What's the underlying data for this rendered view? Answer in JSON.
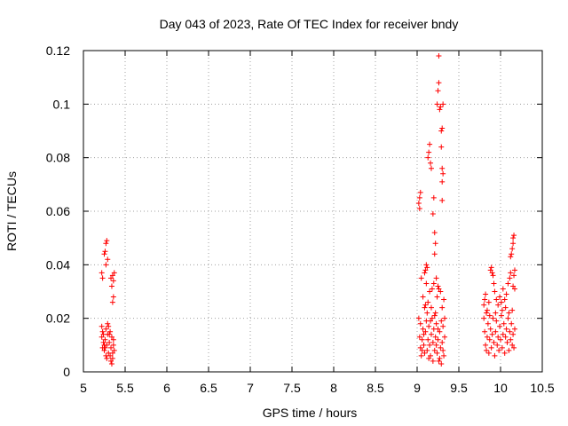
{
  "chart_data": {
    "type": "scatter",
    "title": "Day 043 of 2023, Rate Of TEC Index for receiver bndy",
    "xlabel": "GPS time / hours",
    "ylabel": "ROTI / TECUs",
    "xlim": [
      5,
      10.5
    ],
    "ylim": [
      0,
      0.12
    ],
    "grid": true,
    "marker": "+",
    "color": "#ff0000",
    "xticks": [
      {
        "value": 5,
        "label": "5"
      },
      {
        "value": 5.5,
        "label": "5.5"
      },
      {
        "value": 6,
        "label": "6"
      },
      {
        "value": 6.5,
        "label": "6.5"
      },
      {
        "value": 7,
        "label": "7"
      },
      {
        "value": 7.5,
        "label": "7.5"
      },
      {
        "value": 8,
        "label": "8"
      },
      {
        "value": 8.5,
        "label": "8.5"
      },
      {
        "value": 9,
        "label": "9"
      },
      {
        "value": 9.5,
        "label": "9.5"
      },
      {
        "value": 10,
        "label": "10"
      },
      {
        "value": 10.5,
        "label": "10.5"
      }
    ],
    "yticks": [
      {
        "value": 0,
        "label": "0"
      },
      {
        "value": 0.02,
        "label": "0.02"
      },
      {
        "value": 0.04,
        "label": "0.04"
      },
      {
        "value": 0.06,
        "label": "0.06"
      },
      {
        "value": 0.08,
        "label": "0.08"
      },
      {
        "value": 0.1,
        "label": "0.1"
      },
      {
        "value": 0.12,
        "label": "0.12"
      }
    ],
    "series": [
      {
        "name": "ROTI",
        "points": [
          [
            5.22,
            0.037
          ],
          [
            5.23,
            0.035
          ],
          [
            5.25,
            0.044
          ],
          [
            5.26,
            0.045
          ],
          [
            5.27,
            0.048
          ],
          [
            5.28,
            0.049
          ],
          [
            5.27,
            0.04
          ],
          [
            5.29,
            0.042
          ],
          [
            5.35,
            0.036
          ],
          [
            5.36,
            0.034
          ],
          [
            5.34,
            0.032
          ],
          [
            5.36,
            0.028
          ],
          [
            5.35,
            0.026
          ],
          [
            5.37,
            0.037
          ],
          [
            5.33,
            0.035
          ],
          [
            5.22,
            0.017
          ],
          [
            5.23,
            0.015
          ],
          [
            5.22,
            0.013
          ],
          [
            5.24,
            0.011
          ],
          [
            5.23,
            0.009
          ],
          [
            5.25,
            0.008
          ],
          [
            5.26,
            0.012
          ],
          [
            5.27,
            0.016
          ],
          [
            5.28,
            0.01
          ],
          [
            5.29,
            0.014
          ],
          [
            5.3,
            0.007
          ],
          [
            5.31,
            0.011
          ],
          [
            5.32,
            0.006
          ],
          [
            5.33,
            0.009
          ],
          [
            5.34,
            0.013
          ],
          [
            5.35,
            0.005
          ],
          [
            5.36,
            0.01
          ],
          [
            5.37,
            0.008
          ],
          [
            5.3,
            0.017
          ],
          [
            5.32,
            0.015
          ],
          [
            5.34,
            0.003
          ],
          [
            5.36,
            0.012
          ],
          [
            5.25,
            0.01
          ],
          [
            5.27,
            0.006
          ],
          [
            5.29,
            0.018
          ],
          [
            5.31,
            0.014
          ],
          [
            5.33,
            0.004
          ],
          [
            5.35,
            0.007
          ],
          [
            5.24,
            0.014
          ],
          [
            5.26,
            0.009
          ],
          [
            5.28,
            0.005
          ],
          [
            9.02,
            0.063
          ],
          [
            9.03,
            0.065
          ],
          [
            9.04,
            0.067
          ],
          [
            9.03,
            0.061
          ],
          [
            9.1,
            0.038
          ],
          [
            9.11,
            0.04
          ],
          [
            9.12,
            0.039
          ],
          [
            9.09,
            0.037
          ],
          [
            9.13,
            0.08
          ],
          [
            9.14,
            0.082
          ],
          [
            9.15,
            0.085
          ],
          [
            9.16,
            0.078
          ],
          [
            9.17,
            0.076
          ],
          [
            9.2,
            0.065
          ],
          [
            9.19,
            0.059
          ],
          [
            9.21,
            0.052
          ],
          [
            9.22,
            0.048
          ],
          [
            9.21,
            0.044
          ],
          [
            9.24,
            0.1
          ],
          [
            9.25,
            0.105
          ],
          [
            9.26,
            0.108
          ],
          [
            9.27,
            0.098
          ],
          [
            9.28,
            0.099
          ],
          [
            9.29,
            0.09
          ],
          [
            9.3,
            0.091
          ],
          [
            9.31,
            0.1
          ],
          [
            9.26,
            0.118
          ],
          [
            9.29,
            0.084
          ],
          [
            9.3,
            0.076
          ],
          [
            9.31,
            0.074
          ],
          [
            9.3,
            0.071
          ],
          [
            9.3,
            0.064
          ],
          [
            9.25,
            0.032
          ],
          [
            9.05,
            0.035
          ],
          [
            9.07,
            0.028
          ],
          [
            9.09,
            0.024
          ],
          [
            9.11,
            0.033
          ],
          [
            9.13,
            0.026
          ],
          [
            9.15,
            0.03
          ],
          [
            9.2,
            0.033
          ],
          [
            9.22,
            0.022
          ],
          [
            9.24,
            0.028
          ],
          [
            9.26,
            0.031
          ],
          [
            9.28,
            0.03
          ],
          [
            9.3,
            0.024
          ],
          [
            9.32,
            0.027
          ],
          [
            9.18,
            0.031
          ],
          [
            9.23,
            0.035
          ],
          [
            9.02,
            0.02
          ],
          [
            9.03,
            0.013
          ],
          [
            9.04,
            0.009
          ],
          [
            9.05,
            0.006
          ],
          [
            9.06,
            0.012
          ],
          [
            9.07,
            0.016
          ],
          [
            9.08,
            0.01
          ],
          [
            9.09,
            0.007
          ],
          [
            9.1,
            0.015
          ],
          [
            9.11,
            0.019
          ],
          [
            9.12,
            0.008
          ],
          [
            9.13,
            0.012
          ],
          [
            9.14,
            0.017
          ],
          [
            9.15,
            0.01
          ],
          [
            9.16,
            0.006
          ],
          [
            9.17,
            0.014
          ],
          [
            9.18,
            0.02
          ],
          [
            9.19,
            0.011
          ],
          [
            9.2,
            0.016
          ],
          [
            9.21,
            0.008
          ],
          [
            9.22,
            0.013
          ],
          [
            9.23,
            0.018
          ],
          [
            9.24,
            0.007
          ],
          [
            9.25,
            0.012
          ],
          [
            9.26,
            0.004
          ],
          [
            9.27,
            0.015
          ],
          [
            9.28,
            0.009
          ],
          [
            9.29,
            0.003
          ],
          [
            9.3,
            0.011
          ],
          [
            9.31,
            0.017
          ],
          [
            9.32,
            0.006
          ],
          [
            9.33,
            0.013
          ],
          [
            9.04,
            0.018
          ],
          [
            9.06,
            0.008
          ],
          [
            9.08,
            0.014
          ],
          [
            9.12,
            0.022
          ],
          [
            9.14,
            0.005
          ],
          [
            9.16,
            0.019
          ],
          [
            9.19,
            0.004
          ],
          [
            9.21,
            0.021
          ],
          [
            9.23,
            0.01
          ],
          [
            9.25,
            0.016
          ],
          [
            9.27,
            0.005
          ],
          [
            9.29,
            0.019
          ],
          [
            9.31,
            0.008
          ],
          [
            9.33,
            0.02
          ],
          [
            9.1,
            0.025
          ],
          [
            9.17,
            0.024
          ],
          [
            9.8,
            0.025
          ],
          [
            9.81,
            0.027
          ],
          [
            9.82,
            0.029
          ],
          [
            9.84,
            0.023
          ],
          [
            9.86,
            0.026
          ],
          [
            9.88,
            0.038
          ],
          [
            9.89,
            0.039
          ],
          [
            9.9,
            0.037
          ],
          [
            9.91,
            0.036
          ],
          [
            9.92,
            0.033
          ],
          [
            9.93,
            0.03
          ],
          [
            9.95,
            0.027
          ],
          [
            9.97,
            0.025
          ],
          [
            9.99,
            0.028
          ],
          [
            10.01,
            0.026
          ],
          [
            10.03,
            0.031
          ],
          [
            10.05,
            0.027
          ],
          [
            10.07,
            0.029
          ],
          [
            10.09,
            0.033
          ],
          [
            10.11,
            0.035
          ],
          [
            10.12,
            0.043
          ],
          [
            10.13,
            0.044
          ],
          [
            10.14,
            0.046
          ],
          [
            10.15,
            0.05
          ],
          [
            10.16,
            0.051
          ],
          [
            10.15,
            0.048
          ],
          [
            10.17,
            0.038
          ],
          [
            10.16,
            0.036
          ],
          [
            10.15,
            0.032
          ],
          [
            10.17,
            0.031
          ],
          [
            10.12,
            0.037
          ],
          [
            9.8,
            0.02
          ],
          [
            9.81,
            0.015
          ],
          [
            9.82,
            0.01
          ],
          [
            9.83,
            0.008
          ],
          [
            9.84,
            0.013
          ],
          [
            9.85,
            0.018
          ],
          [
            9.86,
            0.007
          ],
          [
            9.87,
            0.012
          ],
          [
            9.88,
            0.016
          ],
          [
            9.89,
            0.009
          ],
          [
            9.9,
            0.014
          ],
          [
            9.91,
            0.02
          ],
          [
            9.92,
            0.011
          ],
          [
            9.93,
            0.006
          ],
          [
            9.94,
            0.015
          ],
          [
            9.95,
            0.019
          ],
          [
            9.96,
            0.01
          ],
          [
            9.97,
            0.013
          ],
          [
            9.98,
            0.008
          ],
          [
            9.99,
            0.017
          ],
          [
            10.0,
            0.012
          ],
          [
            10.01,
            0.021
          ],
          [
            10.02,
            0.009
          ],
          [
            10.03,
            0.014
          ],
          [
            10.04,
            0.018
          ],
          [
            10.05,
            0.007
          ],
          [
            10.06,
            0.013
          ],
          [
            10.07,
            0.016
          ],
          [
            10.08,
            0.011
          ],
          [
            10.09,
            0.02
          ],
          [
            10.1,
            0.008
          ],
          [
            10.11,
            0.015
          ],
          [
            10.12,
            0.012
          ],
          [
            10.13,
            0.018
          ],
          [
            10.14,
            0.01
          ],
          [
            10.15,
            0.014
          ],
          [
            10.16,
            0.009
          ],
          [
            10.17,
            0.016
          ],
          [
            9.83,
            0.022
          ],
          [
            9.87,
            0.021
          ],
          [
            9.94,
            0.022
          ],
          [
            10.02,
            0.023
          ],
          [
            10.06,
            0.024
          ],
          [
            10.1,
            0.022
          ],
          [
            10.14,
            0.023
          ]
        ]
      }
    ]
  }
}
